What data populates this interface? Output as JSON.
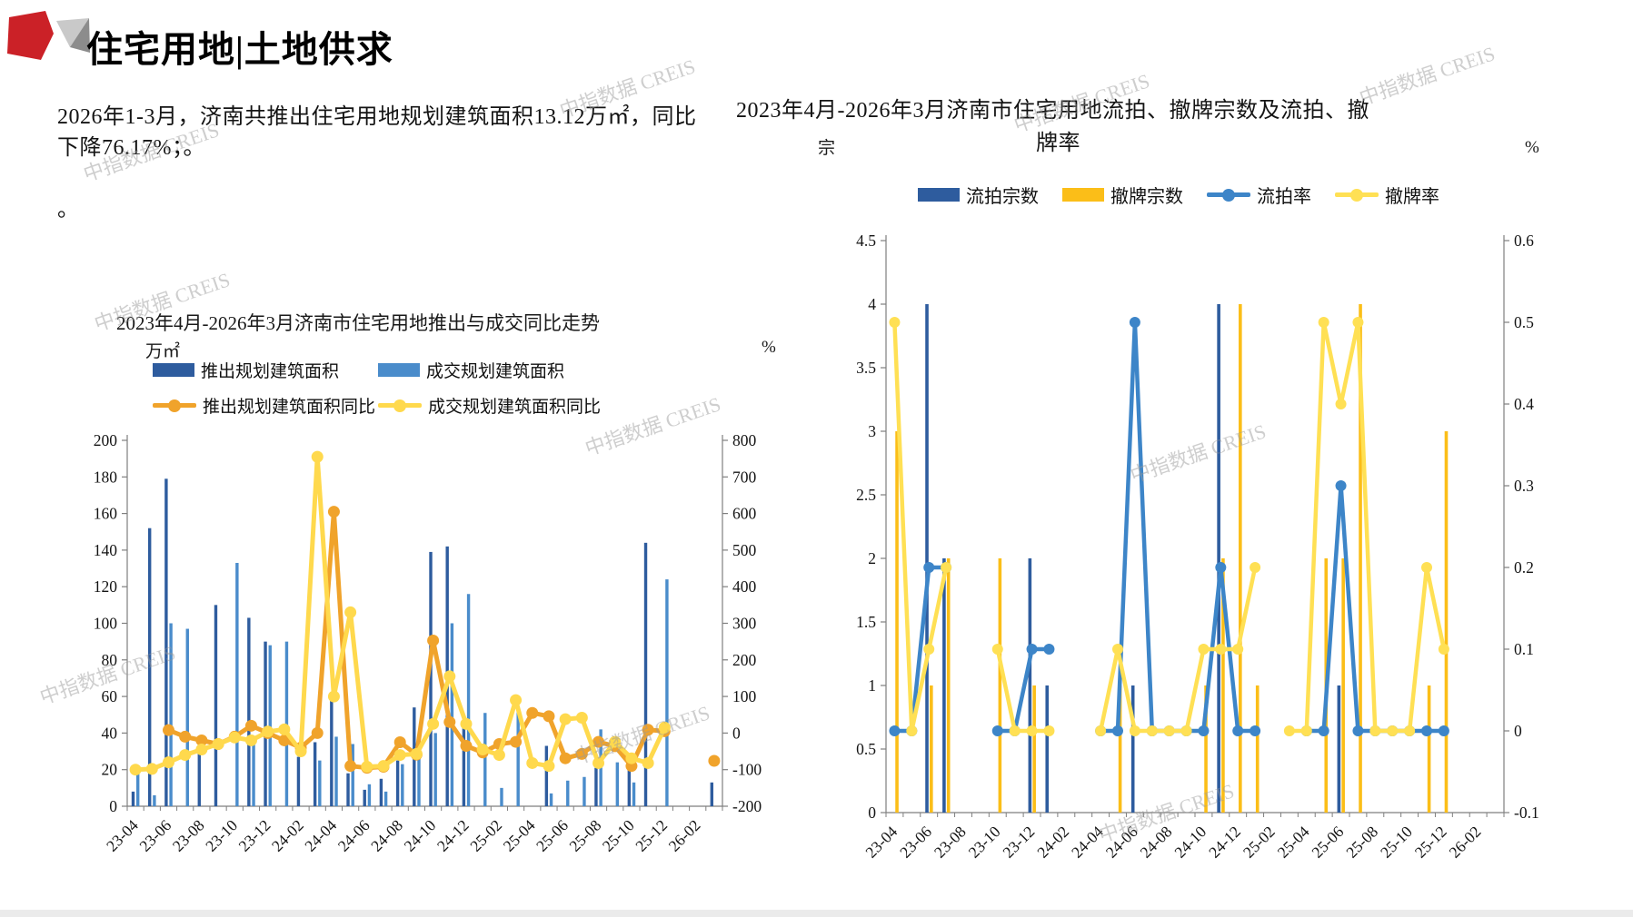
{
  "page": {
    "watermark": "中指数据 CREIS"
  },
  "header": {
    "title": "住宅用地|土地供求"
  },
  "intro": {
    "line1": "2026年1-3月，济南共推出住宅用地规划建筑面积13.12万㎡，同比",
    "line2": "下降76.17%；。",
    "stray": "。"
  },
  "chart_data": [
    {
      "type": "bar+line combo",
      "title": "2023年4月-2026年3月济南市住宅用地推出与成交同比走势",
      "unit_left": "万㎡",
      "unit_right": "%",
      "legend_position": "top",
      "grid": false,
      "x_label_every": 2,
      "categories": [
        "23-04",
        "23-05",
        "23-06",
        "23-07",
        "23-08",
        "23-09",
        "23-10",
        "23-11",
        "23-12",
        "24-01",
        "24-02",
        "24-03",
        "24-04",
        "24-05",
        "24-06",
        "24-07",
        "24-08",
        "24-09",
        "24-10",
        "24-11",
        "24-12",
        "25-01",
        "25-02",
        "25-03",
        "25-04",
        "25-05",
        "25-06",
        "25-07",
        "25-08",
        "25-09",
        "25-10",
        "25-11",
        "25-12",
        "26-01",
        "26-02",
        "26-03"
      ],
      "axis_left": {
        "min": 0,
        "max": 200,
        "step": 20
      },
      "axis_right": {
        "min": -200,
        "max": 800,
        "step": 100
      },
      "series": [
        {
          "name": "推出规划建筑面积",
          "type": "bar",
          "axis": "left",
          "color": "#2E5C9E",
          "values": [
            8,
            152,
            179,
            0,
            30,
            110,
            0,
            103,
            90,
            0,
            27,
            35,
            58,
            18,
            9,
            15,
            25,
            54,
            139,
            142,
            47,
            0,
            0,
            0,
            0,
            33,
            0,
            0,
            21,
            0,
            28,
            144,
            0,
            0,
            0,
            13
          ]
        },
        {
          "name": "成交规划建筑面积",
          "type": "bar",
          "axis": "left",
          "color": "#4A8CCB",
          "values": [
            18,
            6,
            100,
            97,
            0,
            0,
            133,
            37,
            88,
            90,
            0,
            25,
            38,
            34,
            12,
            8,
            23,
            32,
            40,
            100,
            116,
            51,
            10,
            53,
            0,
            7,
            14,
            16,
            42,
            24,
            13,
            0,
            124,
            0,
            0,
            0
          ]
        },
        {
          "name": "推出规划建筑面积同比",
          "type": "line",
          "axis": "right",
          "color": "#F0A32B",
          "values": [
            null,
            null,
            8,
            -10,
            -20,
            -30,
            -10,
            20,
            0,
            -20,
            -40,
            0,
            605,
            -90,
            -95,
            -92,
            -25,
            -59,
            253,
            30,
            -35,
            -53,
            -30,
            -24,
            55,
            46,
            -69,
            -57,
            -24,
            -36,
            -90,
            9,
            5,
            null,
            null,
            -76
          ]
        },
        {
          "name": "成交规划建筑面积同比",
          "type": "line",
          "axis": "right",
          "color": "#FFD94D",
          "values": [
            -100,
            -98,
            -80,
            -60,
            -45,
            -30,
            -12,
            -20,
            4,
            10,
            -50,
            755,
            100,
            330,
            -92,
            -90,
            -60,
            -57,
            25,
            155,
            25,
            -45,
            -60,
            90,
            -82,
            -90,
            38,
            42,
            -82,
            -24,
            -69,
            -82,
            15,
            null,
            null,
            null
          ]
        }
      ]
    },
    {
      "type": "bar+line combo",
      "title": "2023年4月-2026年3月济南市住宅用地流拍、撤牌宗数及流拍、撤牌率",
      "title_lines": [
        "2023年4月-2026年3月济南市住宅用地流拍、撤牌宗数及流拍、撤",
        "牌率"
      ],
      "unit_left": "宗",
      "unit_right": "%",
      "legend_position": "top",
      "grid": false,
      "x_label_every": 2,
      "categories": [
        "23-04",
        "23-05",
        "23-06",
        "23-07",
        "23-08",
        "23-09",
        "23-10",
        "23-11",
        "23-12",
        "24-01",
        "24-02",
        "24-03",
        "24-04",
        "24-05",
        "24-06",
        "24-07",
        "24-08",
        "24-09",
        "24-10",
        "24-11",
        "24-12",
        "25-01",
        "25-02",
        "25-03",
        "25-04",
        "25-05",
        "25-06",
        "25-07",
        "25-08",
        "25-09",
        "25-10",
        "25-11",
        "25-12",
        "26-01",
        "26-02",
        "26-03"
      ],
      "axis_left": {
        "min": 0,
        "max": 4.5,
        "step": 0.5
      },
      "axis_right": {
        "min": -0.1,
        "max": 0.6,
        "step": 0.1
      },
      "series": [
        {
          "name": "流拍宗数",
          "type": "bar",
          "axis": "left",
          "color": "#2E5C9E",
          "values": [
            0,
            0,
            4,
            2,
            0,
            0,
            0,
            0,
            2,
            1,
            0,
            0,
            0,
            0,
            1,
            0,
            0,
            0,
            0,
            4,
            0,
            0,
            0,
            0,
            0,
            0,
            1,
            0,
            0,
            0,
            0,
            0,
            0,
            0,
            0,
            0
          ]
        },
        {
          "name": "撤牌宗数",
          "type": "bar",
          "axis": "left",
          "color": "#FBBE18",
          "values": [
            3,
            0,
            1,
            2,
            0,
            0,
            2,
            0,
            1,
            0,
            0,
            0,
            0,
            1,
            0,
            0,
            0,
            0,
            1,
            2,
            4,
            1,
            0,
            0,
            0,
            2,
            2,
            4,
            0,
            0,
            0,
            1,
            3,
            0,
            0,
            0
          ]
        },
        {
          "name": "流拍率",
          "type": "line",
          "axis": "right",
          "color": "#3D85C8",
          "values": [
            0,
            0,
            0.2,
            0.2,
            null,
            null,
            0,
            0,
            0.1,
            0.1,
            null,
            null,
            0,
            0,
            0.5,
            0,
            0,
            0,
            0,
            0.2,
            0,
            0,
            null,
            null,
            0,
            0,
            0.3,
            0,
            0,
            0,
            0,
            0,
            0,
            null,
            null,
            null
          ]
        },
        {
          "name": "撤牌率",
          "type": "line",
          "axis": "right",
          "color": "#FFE054",
          "values": [
            0.5,
            0,
            0.1,
            0.2,
            null,
            null,
            0.1,
            0,
            0,
            0,
            null,
            null,
            0,
            0.1,
            0,
            0,
            0,
            0,
            0.1,
            0.1,
            0.1,
            0.2,
            null,
            0,
            0,
            0.5,
            0.4,
            0.5,
            0,
            0,
            0,
            0.2,
            0.1,
            null,
            null,
            null
          ]
        }
      ]
    }
  ]
}
